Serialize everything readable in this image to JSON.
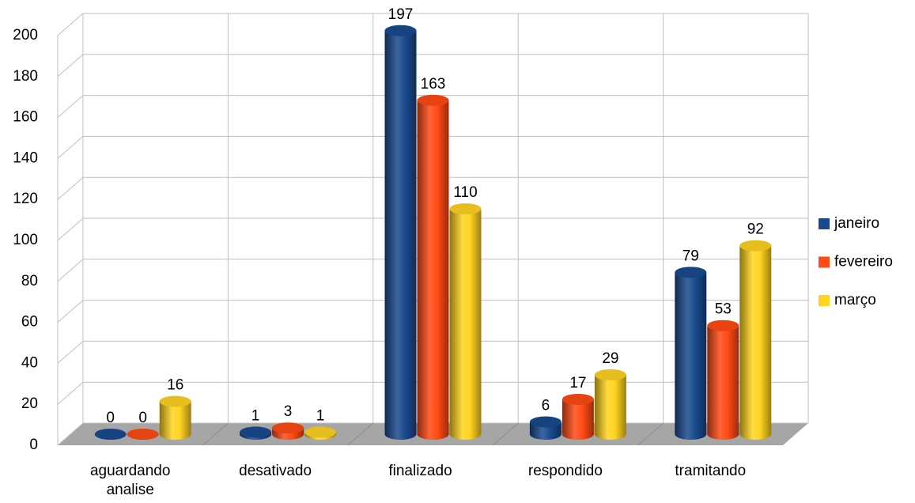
{
  "chart_data": {
    "type": "bar3d",
    "categories": [
      "aguardando analise",
      "desativado",
      "finalizado",
      "respondido",
      "tramitando"
    ],
    "series": [
      {
        "name": "janeiro",
        "color": "#1a4a8e",
        "values": [
          0,
          1,
          197,
          6,
          79
        ]
      },
      {
        "name": "fevereiro",
        "color": "#ff4a14",
        "values": [
          0,
          3,
          163,
          17,
          53
        ]
      },
      {
        "name": "março",
        "color": "#ffd320",
        "values": [
          16,
          1,
          110,
          29,
          92
        ]
      }
    ],
    "ylim": [
      0,
      200
    ],
    "yticks": [
      0,
      20,
      40,
      60,
      80,
      100,
      120,
      140,
      160,
      180,
      200
    ],
    "grid": true,
    "legend": "right",
    "data_labels": true
  }
}
